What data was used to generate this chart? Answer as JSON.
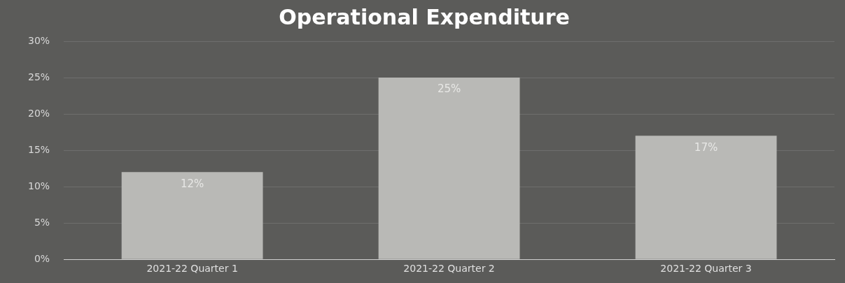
{
  "chart_data": {
    "type": "bar",
    "title": "Operational Expenditure",
    "categories": [
      "2021-22 Quarter 1",
      "2021-22 Quarter 2",
      "2021-22 Quarter 3"
    ],
    "values": [
      12,
      25,
      17
    ],
    "color": "#b9b9b6",
    "value_labels": [
      "12%",
      "25%",
      "17%"
    ],
    "ylim": [
      0,
      30
    ],
    "yticks": [
      {
        "value": 0,
        "label": "0%"
      },
      {
        "value": 5,
        "label": "5%"
      },
      {
        "value": 10,
        "label": "10%"
      },
      {
        "value": 15,
        "label": "15%"
      },
      {
        "value": 20,
        "label": "20%"
      },
      {
        "value": 25,
        "label": "25%"
      },
      {
        "value": 30,
        "label": "30%"
      }
    ],
    "grid": "y"
  }
}
